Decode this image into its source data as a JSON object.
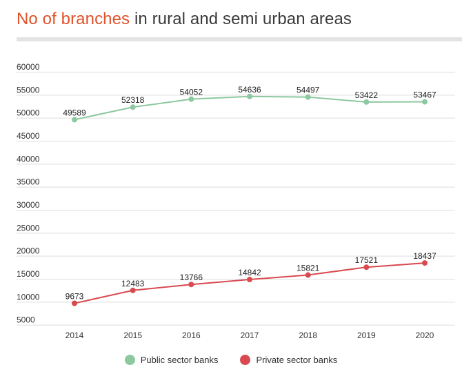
{
  "title": {
    "highlight": "No of branches",
    "rest": " in rural and semi urban areas"
  },
  "colors": {
    "public": "#8cc8a0",
    "private": "#d84a4f",
    "grid": "#dddddd",
    "title_highlight": "#e0532b"
  },
  "chart_data": {
    "type": "line",
    "title": "No of branches in rural and semi urban areas",
    "xlabel": "",
    "ylabel": "",
    "categories": [
      "2014",
      "2015",
      "2016",
      "2017",
      "2018",
      "2019",
      "2020"
    ],
    "y_ticks": [
      "5000",
      "10000",
      "15000",
      "20000",
      "25000",
      "30000",
      "35000",
      "40000",
      "45000",
      "50000",
      "55000",
      "60000"
    ],
    "ylim": [
      3000,
      63000
    ],
    "grid": true,
    "legend_position": "bottom",
    "series": [
      {
        "name": "Public sector banks",
        "values": [
          49589,
          52318,
          54052,
          54636,
          54497,
          53422,
          53467
        ]
      },
      {
        "name": "Private sector banks",
        "values": [
          9673,
          12483,
          13766,
          14842,
          15821,
          17521,
          18437
        ]
      }
    ]
  }
}
